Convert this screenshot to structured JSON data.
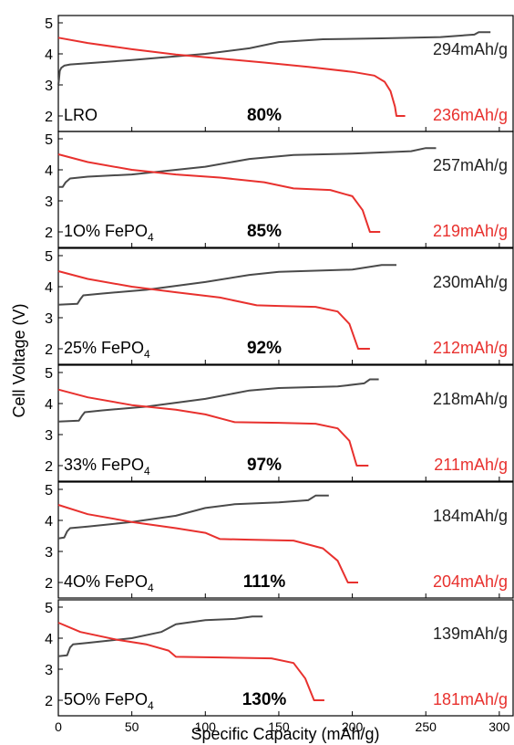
{
  "xlabel": "Specific Capacity (mAh/g)",
  "ylabel": "Cell Voltage (V)",
  "colors": {
    "charge": "#4a4a4a",
    "discharge": "#e8312e",
    "axis": "#000000"
  },
  "chart_data": [
    {
      "type": "line",
      "sample_label": "LRO",
      "retention": "80%",
      "charge_capacity": "294mAh/g",
      "discharge_capacity": "236mAh/g",
      "xlim": [
        0,
        310
      ],
      "ylim": [
        1.5,
        5
      ],
      "yticks": [
        2,
        3,
        4,
        5
      ],
      "xticks": [
        0,
        50,
        100,
        150,
        200,
        250,
        300
      ],
      "series": [
        {
          "role": "charge",
          "x": [
            0,
            0.5,
            1,
            2,
            4,
            8,
            20,
            50,
            100,
            130,
            150,
            180,
            220,
            260,
            283,
            286,
            294
          ],
          "y": [
            3.0,
            3.2,
            3.45,
            3.55,
            3.62,
            3.66,
            3.7,
            3.8,
            4.0,
            4.18,
            4.38,
            4.47,
            4.5,
            4.54,
            4.62,
            4.7,
            4.7
          ]
        },
        {
          "role": "discharge",
          "x": [
            0,
            20,
            50,
            80,
            110,
            140,
            170,
            200,
            215,
            222,
            226,
            229,
            230,
            236
          ],
          "y": [
            4.52,
            4.35,
            4.15,
            3.98,
            3.85,
            3.72,
            3.58,
            3.42,
            3.3,
            3.1,
            2.8,
            2.3,
            2.0,
            2.0
          ]
        }
      ]
    },
    {
      "type": "line",
      "sample_label": "1O% FePO",
      "sample_label_sub": "4",
      "retention": "85%",
      "charge_capacity": "257mAh/g",
      "discharge_capacity": "219mAh/g",
      "xlim": [
        0,
        310
      ],
      "ylim": [
        1.5,
        5
      ],
      "yticks": [
        2,
        3,
        4,
        5
      ],
      "xticks": [
        0,
        50,
        100,
        150,
        200,
        250,
        300
      ],
      "series": [
        {
          "role": "charge",
          "x": [
            0,
            3,
            5,
            8,
            20,
            50,
            100,
            130,
            160,
            200,
            240,
            250,
            257
          ],
          "y": [
            3.45,
            3.45,
            3.6,
            3.72,
            3.78,
            3.85,
            4.1,
            4.35,
            4.48,
            4.52,
            4.6,
            4.7,
            4.7
          ]
        },
        {
          "role": "discharge",
          "x": [
            0,
            20,
            50,
            80,
            110,
            140,
            160,
            185,
            200,
            207,
            212,
            219
          ],
          "y": [
            4.5,
            4.25,
            4.0,
            3.85,
            3.75,
            3.6,
            3.4,
            3.35,
            3.15,
            2.7,
            2.0,
            2.0
          ]
        }
      ]
    },
    {
      "type": "line",
      "sample_label": "25% FePO",
      "sample_label_sub": "4",
      "retention": "92%",
      "charge_capacity": "230mAh/g",
      "discharge_capacity": "212mAh/g",
      "xlim": [
        0,
        310
      ],
      "ylim": [
        1.5,
        5
      ],
      "yticks": [
        2,
        3,
        4,
        5
      ],
      "xticks": [
        0,
        50,
        100,
        150,
        200,
        250,
        300
      ],
      "series": [
        {
          "role": "charge",
          "x": [
            0,
            13,
            15,
            17,
            30,
            60,
            100,
            130,
            150,
            200,
            220,
            230
          ],
          "y": [
            3.42,
            3.45,
            3.6,
            3.72,
            3.78,
            3.9,
            4.15,
            4.38,
            4.48,
            4.55,
            4.7,
            4.7
          ]
        },
        {
          "role": "discharge",
          "x": [
            0,
            20,
            50,
            80,
            110,
            135,
            150,
            175,
            190,
            198,
            204,
            212
          ],
          "y": [
            4.5,
            4.25,
            4.0,
            3.82,
            3.65,
            3.4,
            3.38,
            3.35,
            3.2,
            2.8,
            2.0,
            2.0
          ]
        }
      ]
    },
    {
      "type": "line",
      "sample_label": "33% FePO",
      "sample_label_sub": "4",
      "retention": "97%",
      "charge_capacity": "218mAh/g",
      "discharge_capacity": "211mAh/g",
      "xlim": [
        0,
        310
      ],
      "ylim": [
        1.5,
        5
      ],
      "yticks": [
        2,
        3,
        4,
        5
      ],
      "xticks": [
        0,
        50,
        100,
        150,
        200,
        250,
        300
      ],
      "series": [
        {
          "role": "charge",
          "x": [
            0,
            14,
            16,
            18,
            30,
            60,
            100,
            130,
            150,
            190,
            208,
            212,
            218
          ],
          "y": [
            3.42,
            3.45,
            3.6,
            3.72,
            3.78,
            3.9,
            4.15,
            4.42,
            4.5,
            4.55,
            4.65,
            4.78,
            4.78
          ]
        },
        {
          "role": "discharge",
          "x": [
            0,
            20,
            50,
            80,
            100,
            120,
            150,
            175,
            190,
            198,
            203,
            211
          ],
          "y": [
            4.45,
            4.2,
            3.95,
            3.8,
            3.65,
            3.4,
            3.38,
            3.35,
            3.2,
            2.8,
            2.0,
            2.0
          ]
        }
      ]
    },
    {
      "type": "line",
      "sample_label": "4O% FePO",
      "sample_label_sub": "4",
      "retention": "111%",
      "charge_capacity": "184mAh/g",
      "discharge_capacity": "204mAh/g",
      "xlim": [
        0,
        310
      ],
      "ylim": [
        1.5,
        5
      ],
      "yticks": [
        2,
        3,
        4,
        5
      ],
      "xticks": [
        0,
        50,
        100,
        150,
        200,
        250,
        300
      ],
      "series": [
        {
          "role": "charge",
          "x": [
            0,
            4,
            6,
            8,
            20,
            50,
            80,
            100,
            120,
            150,
            170,
            175,
            184
          ],
          "y": [
            3.42,
            3.45,
            3.65,
            3.75,
            3.8,
            3.95,
            4.15,
            4.4,
            4.52,
            4.58,
            4.65,
            4.8,
            4.8
          ]
        },
        {
          "role": "discharge",
          "x": [
            0,
            20,
            50,
            80,
            100,
            110,
            130,
            160,
            180,
            190,
            197,
            204
          ],
          "y": [
            4.5,
            4.2,
            3.95,
            3.75,
            3.6,
            3.4,
            3.38,
            3.35,
            3.1,
            2.7,
            2.0,
            2.0
          ]
        }
      ]
    },
    {
      "type": "line",
      "sample_label": "5O% FePO",
      "sample_label_sub": "4",
      "retention": "130%",
      "charge_capacity": "139mAh/g",
      "discharge_capacity": "181mAh/g",
      "xlim": [
        0,
        310
      ],
      "ylim": [
        1.5,
        5
      ],
      "yticks": [
        2,
        3,
        4,
        5
      ],
      "xticks": [
        0,
        50,
        100,
        150,
        200,
        250,
        300
      ],
      "series": [
        {
          "role": "charge",
          "x": [
            0,
            6,
            8,
            10,
            20,
            50,
            70,
            80,
            100,
            120,
            132,
            139
          ],
          "y": [
            3.42,
            3.45,
            3.7,
            3.8,
            3.85,
            4.0,
            4.2,
            4.45,
            4.58,
            4.62,
            4.7,
            4.7
          ]
        },
        {
          "role": "discharge",
          "x": [
            0,
            15,
            40,
            60,
            75,
            80,
            110,
            145,
            160,
            168,
            174,
            181
          ],
          "y": [
            4.5,
            4.2,
            3.95,
            3.8,
            3.6,
            3.4,
            3.38,
            3.35,
            3.2,
            2.7,
            2.0,
            2.0
          ]
        }
      ]
    }
  ]
}
